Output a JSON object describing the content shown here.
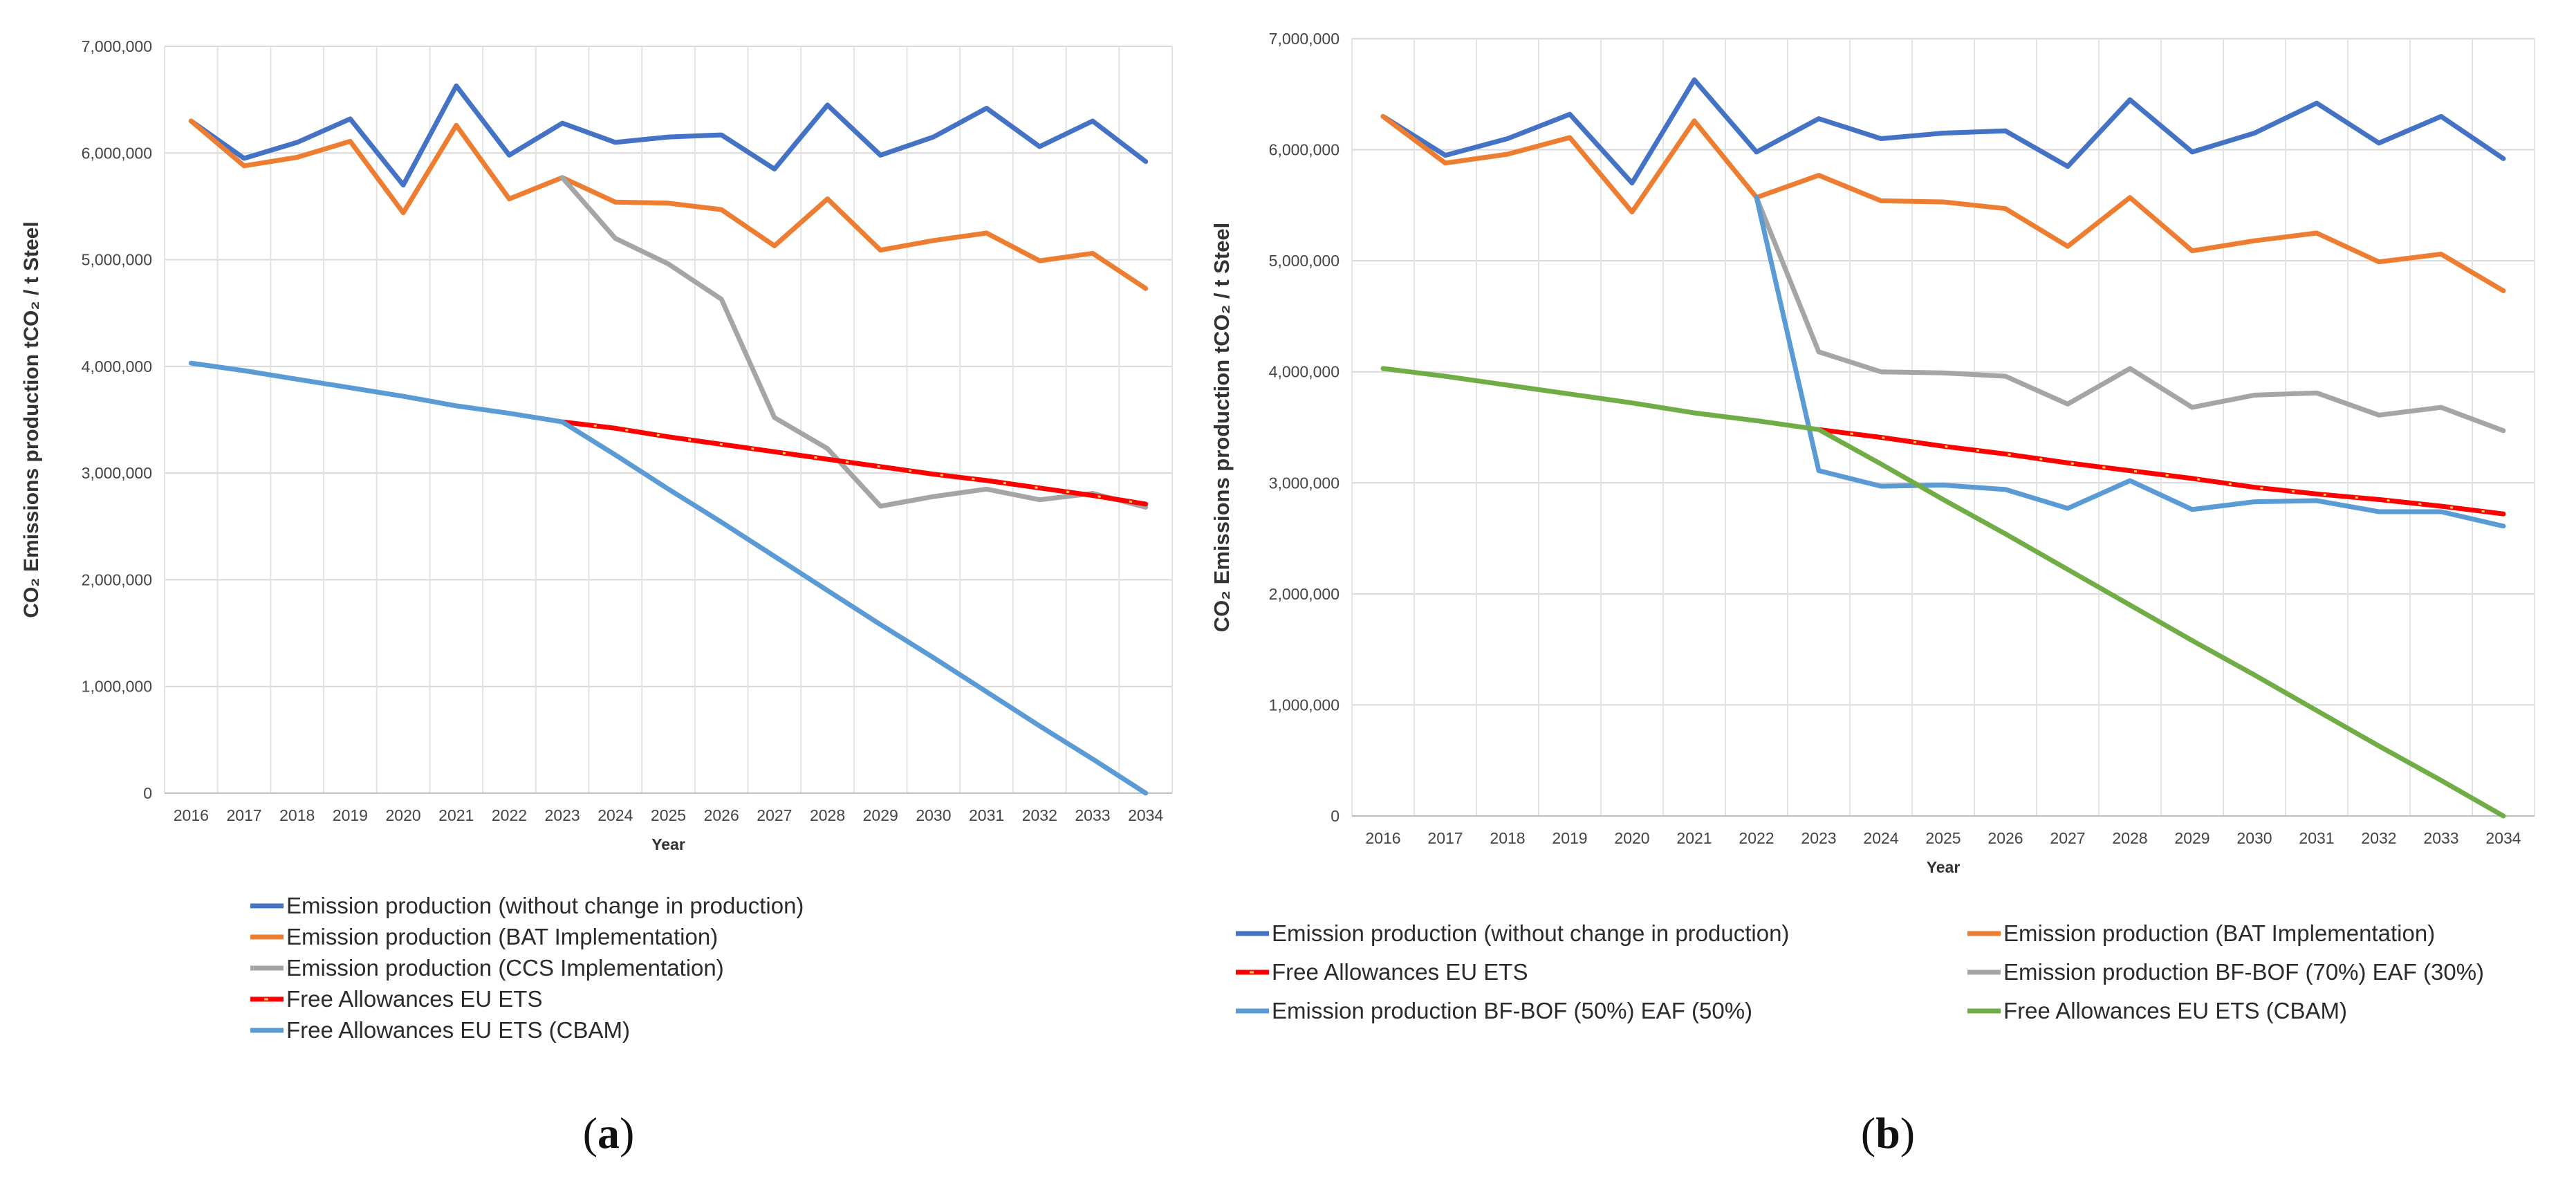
{
  "chart_data": [
    {
      "type": "line",
      "panel_label": "a",
      "x": [
        "2016",
        "2017",
        "2018",
        "2019",
        "2020",
        "2021",
        "2022",
        "2023",
        "2024",
        "2025",
        "2026",
        "2027",
        "2028",
        "2029",
        "2030",
        "2031",
        "2032",
        "2033",
        "2034"
      ],
      "xlabel": "Year",
      "ylabel": "CO₂ Emissions production tCO₂ / t Steel",
      "ylim": [
        0,
        7000000
      ],
      "yticks": [
        "0",
        "1,000,000",
        "2,000,000",
        "3,000,000",
        "4,000,000",
        "5,000,000",
        "6,000,000",
        "7,000,000"
      ],
      "grid": "horizontal+vertical",
      "legend_position": "bottom",
      "series": [
        {
          "name": "Emission production (without change in production)",
          "color": "#4472C4",
          "style": "solid",
          "values": [
            6300000,
            5950000,
            6100000,
            6320000,
            5700000,
            6630000,
            5980000,
            6280000,
            6100000,
            6150000,
            6170000,
            5850000,
            6450000,
            5980000,
            6150000,
            6420000,
            6060000,
            6300000,
            5920000
          ]
        },
        {
          "name": "Emission production (BAT Implementation)",
          "color": "#ED7D31",
          "style": "solid",
          "values": [
            6300000,
            5880000,
            5960000,
            6110000,
            5440000,
            6260000,
            5570000,
            5770000,
            5540000,
            5530000,
            5470000,
            5130000,
            5570000,
            5090000,
            5180000,
            5250000,
            4990000,
            5060000,
            4730000
          ]
        },
        {
          "name": "Emission production (CCS Implementation)",
          "color": "#A5A5A5",
          "style": "solid",
          "values": [
            null,
            null,
            null,
            null,
            null,
            null,
            null,
            5770000,
            5200000,
            4960000,
            4630000,
            3520000,
            3230000,
            2690000,
            2780000,
            2850000,
            2750000,
            2810000,
            2680000
          ]
        },
        {
          "name": "Free Allowances EU ETS",
          "color": "#FF0000",
          "style": "dashed-yellow",
          "values": [
            null,
            null,
            null,
            null,
            null,
            null,
            null,
            3480000,
            3420000,
            3340000,
            3270000,
            3200000,
            3130000,
            3060000,
            2990000,
            2930000,
            2860000,
            2790000,
            2710000
          ]
        },
        {
          "name": "Free Allowances EU ETS (CBAM)",
          "color": "#5B9BD5",
          "style": "solid",
          "values": [
            4030000,
            3960000,
            3880000,
            3800000,
            3720000,
            3630000,
            3560000,
            3480000,
            3170000,
            2850000,
            2540000,
            2220000,
            1900000,
            1580000,
            1270000,
            950000,
            630000,
            320000,
            0
          ]
        }
      ]
    },
    {
      "type": "line",
      "panel_label": "b",
      "x": [
        "2016",
        "2017",
        "2018",
        "2019",
        "2020",
        "2021",
        "2022",
        "2023",
        "2024",
        "2025",
        "2026",
        "2027",
        "2028",
        "2029",
        "2030",
        "2031",
        "2032",
        "2033",
        "2034"
      ],
      "xlabel": "Year",
      "ylabel": "CO₂ Emissions production tCO₂ / t Steel",
      "ylim": [
        0,
        7000000
      ],
      "yticks": [
        "0",
        "1,000,000",
        "2,000,000",
        "3,000,000",
        "4,000,000",
        "5,000,000",
        "6,000,000",
        "7,000,000"
      ],
      "grid": "horizontal+vertical",
      "legend_position": "bottom",
      "series": [
        {
          "name": "Emission production (without change in production)",
          "color": "#4472C4",
          "style": "solid",
          "values": [
            6300000,
            5950000,
            6100000,
            6320000,
            5700000,
            6630000,
            5980000,
            6280000,
            6100000,
            6150000,
            6170000,
            5850000,
            6450000,
            5980000,
            6150000,
            6420000,
            6060000,
            6300000,
            5920000
          ]
        },
        {
          "name": "Emission production (BAT Implementation)",
          "color": "#ED7D31",
          "style": "solid",
          "values": [
            6300000,
            5880000,
            5960000,
            6110000,
            5440000,
            6260000,
            5570000,
            5770000,
            5540000,
            5530000,
            5470000,
            5130000,
            5570000,
            5090000,
            5180000,
            5250000,
            4990000,
            5060000,
            4730000
          ]
        },
        {
          "name": "Free Allowances EU ETS",
          "color": "#FF0000",
          "style": "dashed-yellow",
          "values": [
            null,
            null,
            null,
            null,
            null,
            null,
            null,
            3480000,
            3410000,
            3330000,
            3260000,
            3180000,
            3110000,
            3040000,
            2960000,
            2900000,
            2850000,
            2790000,
            2720000
          ]
        },
        {
          "name": "Emission production BF-BOF (70%) EAF (30%)",
          "color": "#A5A5A5",
          "style": "solid",
          "values": [
            null,
            null,
            null,
            null,
            null,
            null,
            5570000,
            4180000,
            4000000,
            3990000,
            3960000,
            3710000,
            4030000,
            3680000,
            3790000,
            3810000,
            3610000,
            3680000,
            3470000
          ]
        },
        {
          "name": "Emission production BF-BOF (50%) EAF (50%)",
          "color": "#5B9BD5",
          "style": "solid",
          "values": [
            null,
            null,
            null,
            null,
            null,
            null,
            5570000,
            3110000,
            2970000,
            2980000,
            2940000,
            2770000,
            3020000,
            2760000,
            2830000,
            2840000,
            2740000,
            2740000,
            2610000
          ]
        },
        {
          "name": "Free Allowances EU ETS (CBAM)",
          "color": "#70AD47",
          "style": "solid",
          "values": [
            4030000,
            3960000,
            3880000,
            3800000,
            3720000,
            3630000,
            3560000,
            3480000,
            3170000,
            2850000,
            2540000,
            2220000,
            1900000,
            1580000,
            1270000,
            950000,
            630000,
            320000,
            0
          ]
        }
      ]
    }
  ]
}
